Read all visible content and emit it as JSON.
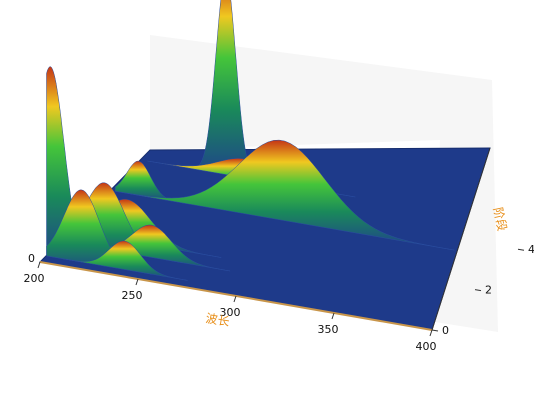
{
  "chart_data": {
    "type": "surface-3d",
    "title": "",
    "xlabel": "波长",
    "ylabel": "阶段",
    "xticks": [
      "200",
      "250",
      "300",
      "350",
      "400"
    ],
    "yticks": [
      "0",
      "2",
      "4"
    ],
    "zticks": [
      "0"
    ],
    "xlim": [
      200,
      400
    ],
    "ylim": [
      0,
      5
    ],
    "colors": {
      "floor": "#1e3a8a",
      "wall": "#f6f6f6",
      "axis_label": "#e8901c"
    },
    "series": [
      {
        "stage": 0.3,
        "center": 202,
        "width": 7,
        "height": 1.0
      },
      {
        "stage": 0.3,
        "center": 218,
        "width": 9,
        "height": 0.38
      },
      {
        "stage": 0.3,
        "center": 240,
        "width": 8,
        "height": 0.15
      },
      {
        "stage": 1.0,
        "center": 222,
        "width": 10,
        "height": 0.35
      },
      {
        "stage": 1.0,
        "center": 246,
        "width": 10,
        "height": 0.17
      },
      {
        "stage": 1.5,
        "center": 228,
        "width": 12,
        "height": 0.22
      },
      {
        "stage": 3.5,
        "center": 212,
        "width": 6,
        "height": 0.18
      },
      {
        "stage": 3.5,
        "center": 285,
        "width": 22,
        "height": 0.42
      },
      {
        "stage": 5.0,
        "center": 240,
        "width": 5,
        "height": 1.05
      },
      {
        "stage": 5.0,
        "center": 250,
        "width": 14,
        "height": 0.1
      }
    ]
  }
}
